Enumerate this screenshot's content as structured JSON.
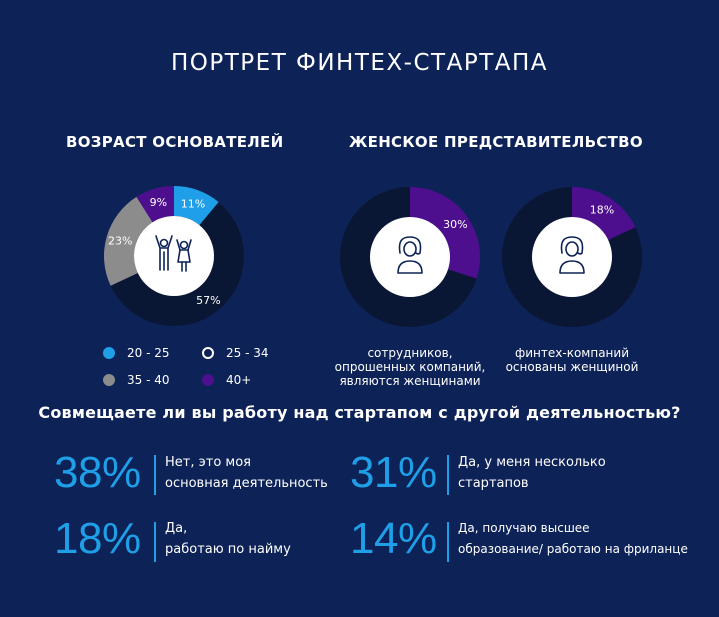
{
  "title": "ПОРТРЕТ ФИНТЕХ-СТАРТАПА",
  "age_section": {
    "title": "ВОЗРАСТ ОСНОВАТЕЛЕЙ",
    "icon": "people-icon",
    "legend": [
      {
        "label": "20 - 25",
        "color": "#1e9fe8",
        "style": "filled"
      },
      {
        "label": "25 - 34",
        "color": "#ffffff",
        "style": "outline"
      },
      {
        "label": "35 - 40",
        "color": "#8c8c8c",
        "style": "filled"
      },
      {
        "label": "40+",
        "color": "#4d0f8e",
        "style": "filled"
      }
    ]
  },
  "female_section": {
    "title": "ЖЕНСКОЕ ПРЕДСТАВИТЕЛЬСТВО",
    "icon": "woman-icon",
    "captions": [
      "сотрудников,\nопрошенных компаний,\nявляются женщинами",
      "финтех-компаний\nосновaны женщиной"
    ]
  },
  "question": {
    "title": "Совмещаете ли вы работу над стартапом с другой деятельностью?",
    "stats": [
      {
        "value": "38%",
        "text": "Нет, это моя\nосновная деятельность"
      },
      {
        "value": "31%",
        "text": "Да, у меня несколько\nстартапов"
      },
      {
        "value": "18%",
        "text": "Да,\nработаю по найму"
      },
      {
        "value": "14%",
        "text": "Да, получаю высшее\nобразование/ работаю на фриланце"
      }
    ]
  },
  "colors": {
    "background": "#0d2257",
    "accent_blue": "#1e9fe8",
    "purple": "#4d0f8e",
    "gray": "#8c8c8c",
    "dark_ring": "#0a1734"
  },
  "chart_data": [
    {
      "type": "pie",
      "title": "ВОЗРАСТ ОСНОВАТЕЛЕЙ",
      "categories": [
        "20 - 25",
        "25 - 34",
        "35 - 40",
        "40+"
      ],
      "values": [
        11,
        57,
        23,
        9
      ],
      "labels": [
        "11%",
        "57%",
        "23%",
        "9%"
      ],
      "colors": [
        "#1e9fe8",
        "#0a1734",
        "#8c8c8c",
        "#4d0f8e"
      ]
    },
    {
      "type": "pie",
      "title": "ЖЕНСКОЕ ПРЕДСТАВИТЕЛЬСТВО",
      "categories": [
        "сотрудников, опрошенных компаний, являются женщинами"
      ],
      "values": [
        30
      ],
      "labels": [
        "30%"
      ],
      "colors": [
        "#4d0f8e",
        "#0a1734"
      ]
    },
    {
      "type": "pie",
      "categories": [
        "финтех-компаний основaны женщиной"
      ],
      "values": [
        18
      ],
      "labels": [
        "18%"
      ],
      "colors": [
        "#4d0f8e",
        "#0a1734"
      ]
    }
  ]
}
